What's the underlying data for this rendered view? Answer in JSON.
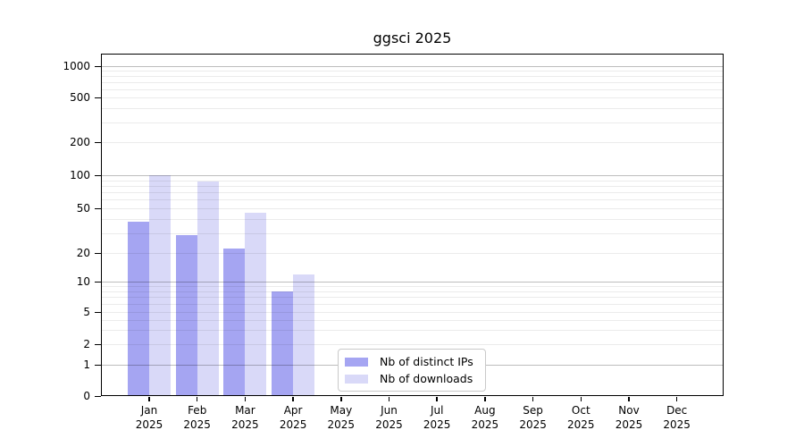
{
  "title": "ggsci 2025",
  "chart_data": {
    "type": "bar",
    "title": "ggsci 2025",
    "categories": [
      "Jan 2025",
      "Feb 2025",
      "Mar 2025",
      "Apr 2025",
      "May 2025",
      "Jun 2025",
      "Jul 2025",
      "Aug 2025",
      "Sep 2025",
      "Oct 2025",
      "Nov 2025",
      "Dec 2025"
    ],
    "series": [
      {
        "name": "Nb of distinct IPs",
        "color": "#a5a5f2",
        "values": [
          38,
          29,
          22,
          8,
          0,
          0,
          0,
          0,
          0,
          0,
          0,
          0
        ]
      },
      {
        "name": "Nb of downloads",
        "color": "#d9d9f8",
        "values": [
          100,
          87,
          46,
          12,
          0,
          0,
          0,
          0,
          0,
          0,
          0,
          0
        ]
      }
    ],
    "y_axis": {
      "ticks": [
        0,
        1,
        2,
        5,
        10,
        20,
        50,
        100,
        200,
        500,
        1000
      ],
      "scale": "log-like (linear 0-1, logarithmic above 1)",
      "ylim": [
        0,
        1300
      ],
      "major_gridlines": [
        1,
        10,
        100,
        1000
      ],
      "minor_gridlines": [
        2,
        3,
        4,
        5,
        6,
        7,
        8,
        9,
        20,
        30,
        40,
        50,
        60,
        70,
        80,
        90,
        200,
        300,
        400,
        500,
        600,
        700,
        800,
        900
      ]
    },
    "xlabel": "",
    "ylabel": "",
    "grid": true,
    "legend_position": "bottom-center"
  },
  "colors": {
    "bar_distinct_ips": "#a5a5f2",
    "bar_downloads": "#d9d9f8",
    "axis": "#000000",
    "legend_border": "#c9c9c9",
    "background": "#ffffff",
    "text": "#000000"
  }
}
